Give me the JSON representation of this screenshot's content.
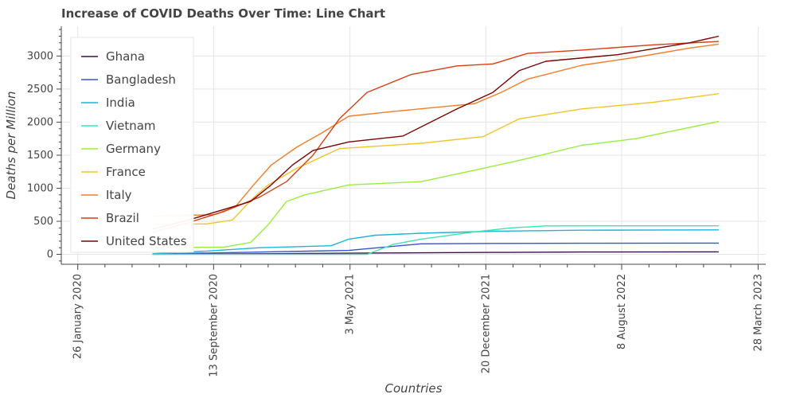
{
  "chart_data": {
    "type": "line",
    "title": "Increase of COVID Deaths Over Time: Line Chart",
    "xlabel": "Countries",
    "ylabel": "Deaths per Million",
    "x_ticks": [
      "26 January 2020",
      "13 September 2020",
      "3 May 2021",
      "20 December 2021",
      "8 August 2022",
      "28 March 2023"
    ],
    "x_range": [
      "2019-12-29",
      "2023-04-10"
    ],
    "y_ticks": [
      0,
      500,
      1000,
      1500,
      2000,
      2500,
      3000
    ],
    "ylim": [
      -150,
      3450
    ],
    "grid": true,
    "legend_position": "top-left",
    "series": [
      {
        "name": "Ghana",
        "color": "#3b0f4e",
        "x": [
          "2020-06-01",
          "2021-01-01",
          "2021-06-01",
          "2022-01-01",
          "2022-06-01",
          "2023-01-20"
        ],
        "values": [
          2,
          10,
          20,
          30,
          35,
          38
        ]
      },
      {
        "name": "Bangladesh",
        "color": "#3a53c9",
        "x": [
          "2020-06-01",
          "2020-09-01",
          "2021-01-01",
          "2021-05-01",
          "2021-07-01",
          "2021-09-01",
          "2022-01-01",
          "2022-06-01",
          "2023-01-20"
        ],
        "values": [
          5,
          20,
          40,
          60,
          110,
          160,
          165,
          168,
          170
        ]
      },
      {
        "name": "India",
        "color": "#1fb4d8",
        "x": [
          "2020-06-01",
          "2020-09-01",
          "2020-12-01",
          "2021-04-01",
          "2021-05-01",
          "2021-06-15",
          "2021-09-01",
          "2022-01-01",
          "2022-06-01",
          "2023-01-20"
        ],
        "values": [
          10,
          50,
          100,
          130,
          230,
          290,
          320,
          350,
          365,
          370
        ]
      },
      {
        "name": "Vietnam",
        "color": "#3ce6a8",
        "x": [
          "2020-06-01",
          "2021-06-01",
          "2021-07-15",
          "2021-09-01",
          "2021-12-01",
          "2022-02-01",
          "2022-04-01",
          "2022-08-01",
          "2023-01-20"
        ],
        "values": [
          0,
          0,
          150,
          230,
          340,
          400,
          430,
          432,
          432
        ]
      },
      {
        "name": "Germany",
        "color": "#98ee3c",
        "x": [
          "2020-06-01",
          "2020-10-01",
          "2020-11-15",
          "2020-12-15",
          "2021-01-15",
          "2021-02-15",
          "2021-05-01",
          "2021-09-01",
          "2021-12-15",
          "2022-03-01",
          "2022-06-01",
          "2022-09-01",
          "2023-01-20"
        ],
        "values": [
          100,
          110,
          180,
          450,
          800,
          900,
          1050,
          1100,
          1300,
          1450,
          1650,
          1750,
          2010
        ]
      },
      {
        "name": "France",
        "color": "#f0c52a",
        "x": [
          "2020-06-01",
          "2020-09-01",
          "2020-10-15",
          "2020-11-20",
          "2020-12-15",
          "2021-02-01",
          "2021-04-15",
          "2021-09-01",
          "2021-12-15",
          "2022-02-15",
          "2022-06-01",
          "2022-10-01",
          "2023-01-20"
        ],
        "values": [
          450,
          460,
          520,
          860,
          1050,
          1300,
          1600,
          1680,
          1780,
          2050,
          2200,
          2300,
          2430
        ]
      },
      {
        "name": "Italy",
        "color": "#f07d2a",
        "x": [
          "2020-06-01",
          "2020-08-01",
          "2020-09-15",
          "2020-10-20",
          "2020-11-20",
          "2020-12-20",
          "2021-02-01",
          "2021-03-15",
          "2021-05-01",
          "2021-07-15",
          "2021-12-01",
          "2022-01-15",
          "2022-03-01",
          "2022-06-01",
          "2022-09-01",
          "2022-12-01",
          "2023-01-20"
        ],
        "values": [
          580,
          590,
          600,
          720,
          1050,
          1350,
          1620,
          1830,
          2090,
          2160,
          2280,
          2450,
          2650,
          2860,
          2980,
          3120,
          3180
        ]
      },
      {
        "name": "Brazil",
        "color": "#d53f14",
        "x": [
          "2020-06-01",
          "2020-08-01",
          "2020-10-01",
          "2020-12-01",
          "2021-01-15",
          "2021-03-01",
          "2021-04-15",
          "2021-06-01",
          "2021-08-15",
          "2021-11-01",
          "2022-01-01",
          "2022-03-01",
          "2022-06-01",
          "2022-10-01",
          "2023-01-20"
        ],
        "values": [
          330,
          480,
          650,
          870,
          1100,
          1500,
          2050,
          2450,
          2720,
          2850,
          2880,
          3040,
          3090,
          3170,
          3220
        ]
      },
      {
        "name": "United States",
        "color": "#7a0403",
        "x": [
          "2020-06-01",
          "2020-08-01",
          "2020-10-01",
          "2020-11-15",
          "2020-12-20",
          "2021-01-25",
          "2021-03-01",
          "2021-05-01",
          "2021-08-01",
          "2021-11-01",
          "2022-01-01",
          "2022-02-15",
          "2022-04-01",
          "2022-08-01",
          "2022-12-01",
          "2023-01-20"
        ],
        "values": [
          380,
          520,
          680,
          800,
          1050,
          1350,
          1570,
          1700,
          1790,
          2200,
          2450,
          2780,
          2920,
          3020,
          3200,
          3300
        ]
      }
    ]
  }
}
